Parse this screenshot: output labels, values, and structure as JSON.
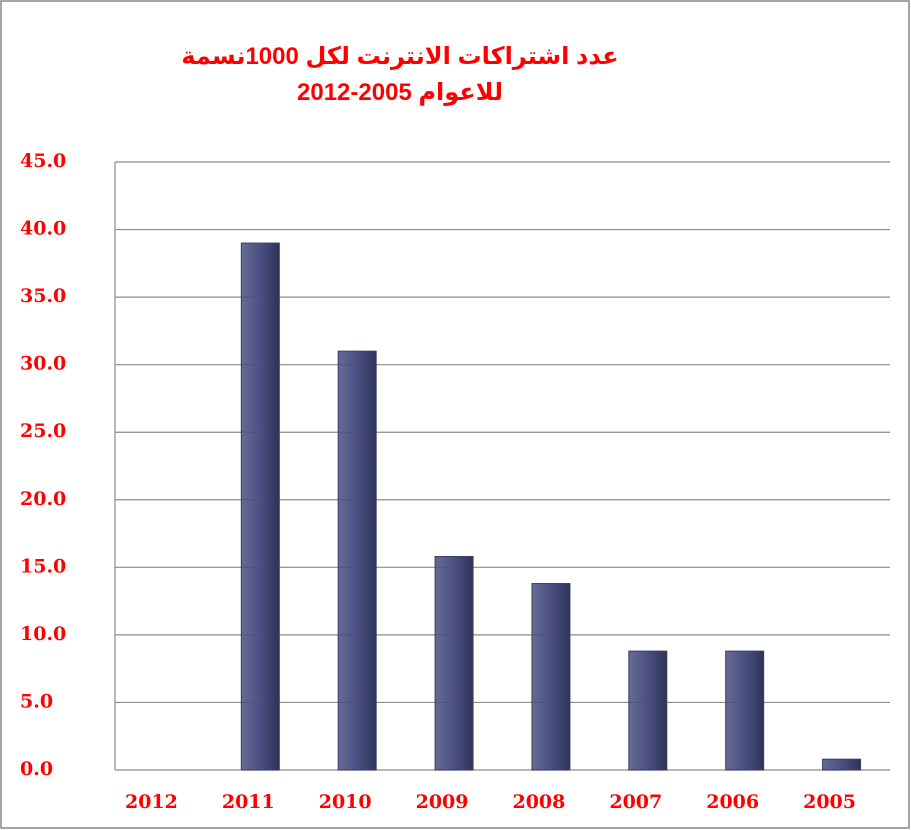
{
  "chart_data": {
    "type": "bar",
    "title": "عدد اشتراكات الانترنت لكل 1000نسمة",
    "subtitle": "للاعوام 2005-2012",
    "categories": [
      "2012",
      "2011",
      "2010",
      "2009",
      "2008",
      "2007",
      "2006",
      "2005"
    ],
    "values": [
      0,
      39,
      31,
      15.8,
      13.8,
      8.8,
      8.8,
      0.8
    ],
    "color": "#4b5083",
    "ylim": [
      0,
      45
    ],
    "yticks": [
      {
        "value": 0,
        "label": "0.0"
      },
      {
        "value": 5,
        "label": "5.0"
      },
      {
        "value": 10,
        "label": "10.0"
      },
      {
        "value": 15,
        "label": "15.0"
      },
      {
        "value": 20,
        "label": "20.0"
      },
      {
        "value": 25,
        "label": "25.0"
      },
      {
        "value": 30,
        "label": "30.0"
      },
      {
        "value": 35,
        "label": "35.0"
      },
      {
        "value": 40,
        "label": "40.0"
      },
      {
        "value": 45,
        "label": "45.0"
      }
    ],
    "grid": true
  }
}
